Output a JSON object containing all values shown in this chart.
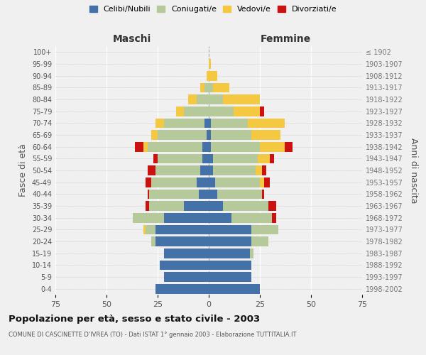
{
  "age_groups": [
    "0-4",
    "5-9",
    "10-14",
    "15-19",
    "20-24",
    "25-29",
    "30-34",
    "35-39",
    "40-44",
    "45-49",
    "50-54",
    "55-59",
    "60-64",
    "65-69",
    "70-74",
    "75-79",
    "80-84",
    "85-89",
    "90-94",
    "95-99",
    "100+"
  ],
  "birth_years": [
    "1998-2002",
    "1993-1997",
    "1988-1992",
    "1983-1987",
    "1978-1982",
    "1973-1977",
    "1968-1972",
    "1963-1967",
    "1958-1962",
    "1953-1957",
    "1948-1952",
    "1943-1947",
    "1938-1942",
    "1933-1937",
    "1928-1932",
    "1923-1927",
    "1918-1922",
    "1913-1917",
    "1908-1912",
    "1903-1907",
    "≤ 1902"
  ],
  "male": {
    "celibe": [
      26,
      22,
      24,
      22,
      26,
      26,
      22,
      12,
      5,
      6,
      4,
      3,
      3,
      1,
      2,
      0,
      0,
      0,
      0,
      0,
      0
    ],
    "coniugato": [
      0,
      0,
      0,
      0,
      2,
      5,
      15,
      17,
      24,
      22,
      22,
      22,
      27,
      24,
      20,
      12,
      6,
      2,
      0,
      0,
      0
    ],
    "vedovo": [
      0,
      0,
      0,
      0,
      0,
      1,
      0,
      0,
      0,
      0,
      0,
      0,
      2,
      3,
      4,
      4,
      4,
      2,
      1,
      0,
      0
    ],
    "divorziato": [
      0,
      0,
      0,
      0,
      0,
      0,
      0,
      2,
      1,
      3,
      4,
      2,
      4,
      0,
      0,
      0,
      0,
      0,
      0,
      0,
      0
    ]
  },
  "female": {
    "nubile": [
      25,
      21,
      21,
      20,
      21,
      21,
      11,
      7,
      4,
      3,
      2,
      2,
      1,
      1,
      1,
      0,
      0,
      0,
      0,
      0,
      0
    ],
    "coniugata": [
      0,
      0,
      0,
      2,
      8,
      13,
      20,
      22,
      22,
      22,
      21,
      22,
      24,
      20,
      18,
      12,
      7,
      2,
      0,
      0,
      0
    ],
    "vedova": [
      0,
      0,
      0,
      0,
      0,
      0,
      0,
      0,
      0,
      2,
      3,
      6,
      12,
      14,
      18,
      13,
      18,
      8,
      4,
      1,
      0
    ],
    "divorziata": [
      0,
      0,
      0,
      0,
      0,
      0,
      2,
      4,
      1,
      3,
      2,
      2,
      4,
      0,
      0,
      2,
      0,
      0,
      0,
      0,
      0
    ]
  },
  "colors": {
    "celibe": "#4472a8",
    "coniugato": "#b5c99a",
    "vedovo": "#f5c842",
    "divorziato": "#cc1111"
  },
  "xlim": 75,
  "title": "Popolazione per età, sesso e stato civile - 2003",
  "subtitle": "COMUNE DI CASCINETTE D'IVREA (TO) - Dati ISTAT 1° gennaio 2003 - Elaborazione TUTTITALIA.IT",
  "ylabel_left": "Fasce di età",
  "ylabel_right": "Anni di nascita",
  "xlabel_male": "Maschi",
  "xlabel_female": "Femmine",
  "legend_labels": [
    "Celibi/Nubili",
    "Coniugati/e",
    "Vedovi/e",
    "Divorziati/e"
  ],
  "bg_color": "#f0f0f0"
}
